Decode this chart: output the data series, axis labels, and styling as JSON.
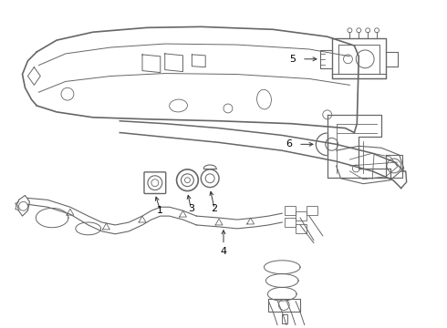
{
  "bg_color": "#ffffff",
  "line_color": "#666666",
  "label_color": "#000000",
  "label_fontsize": 8,
  "arrow_color": "#333333",
  "figsize": [
    4.9,
    3.6
  ],
  "dpi": 100
}
